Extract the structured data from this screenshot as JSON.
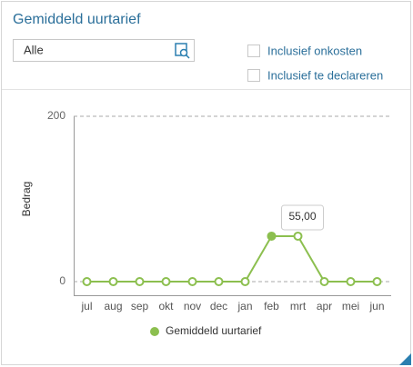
{
  "header": {
    "title": "Gemiddeld uurtarief"
  },
  "filters": {
    "select": "Alle",
    "checkboxes": [
      "Inclusief onkosten",
      "Inclusief te declareren"
    ]
  },
  "chart_data": {
    "type": "line",
    "y_label": "Bedrag",
    "categories": [
      "jul",
      "aug",
      "sep",
      "okt",
      "nov",
      "dec",
      "jan",
      "feb",
      "mrt",
      "apr",
      "mei",
      "jun"
    ],
    "series": [
      {
        "name": "Gemiddeld uurtarief",
        "color": "#8cbf4f",
        "values": [
          0,
          0,
          0,
          0,
          0,
          0,
          0,
          55,
          55,
          0,
          0,
          0
        ],
        "value_labels": [
          null,
          null,
          null,
          null,
          null,
          null,
          null,
          "55,00",
          null,
          null,
          null,
          null
        ]
      }
    ],
    "ylim": [
      0,
      200
    ],
    "yticks": [
      0,
      200
    ],
    "grid": true,
    "legend": "bottom"
  }
}
